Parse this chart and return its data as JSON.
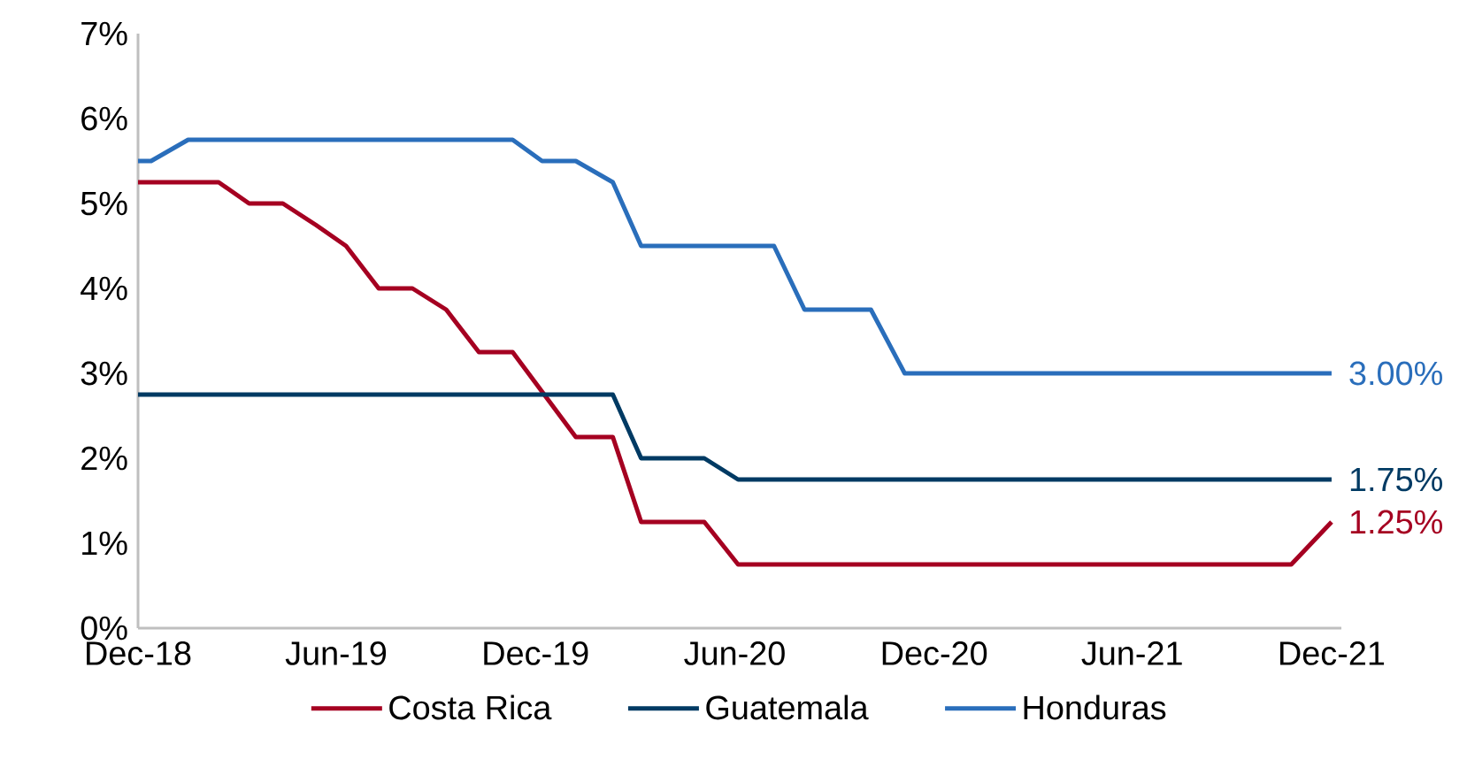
{
  "chart_data": {
    "type": "line",
    "xlim": [
      "2018-12-01",
      "2021-12-10"
    ],
    "ylim": [
      0,
      7
    ],
    "xticks": [
      {
        "value": "2018-12",
        "label": "Dec-18"
      },
      {
        "value": "2019-06",
        "label": "Jun-19"
      },
      {
        "value": "2019-12",
        "label": "Dec-19"
      },
      {
        "value": "2020-06",
        "label": "Jun-20"
      },
      {
        "value": "2020-12",
        "label": "Dec-20"
      },
      {
        "value": "2021-06",
        "label": "Jun-21"
      },
      {
        "value": "2021-12",
        "label": "Dec-21"
      }
    ],
    "yticks": [
      {
        "value": 0,
        "label": "0%"
      },
      {
        "value": 1,
        "label": "1%"
      },
      {
        "value": 2,
        "label": "2%"
      },
      {
        "value": 3,
        "label": "3%"
      },
      {
        "value": 4,
        "label": "4%"
      },
      {
        "value": 5,
        "label": "5%"
      },
      {
        "value": 6,
        "label": "6%"
      },
      {
        "value": 7,
        "label": "7%"
      }
    ],
    "series": [
      {
        "name": "Costa Rica",
        "color": "#a50021",
        "x": [
          "2018-12-01",
          "2019-02-13",
          "2019-03-13",
          "2019-04-13",
          "2019-05-13",
          "2019-06-10",
          "2019-07-10",
          "2019-08-10",
          "2019-09-10",
          "2019-10-10",
          "2019-11-10",
          "2020-01-07",
          "2020-02-10",
          "2020-03-07",
          "2020-05-04",
          "2020-06-04",
          "2021-10-25",
          "2021-12-01"
        ],
        "values": [
          5.25,
          5.25,
          5.0,
          5.0,
          4.75,
          4.5,
          4.0,
          4.0,
          3.75,
          3.25,
          3.25,
          2.25,
          2.25,
          1.25,
          1.25,
          0.75,
          0.75,
          1.25
        ]
      },
      {
        "name": "Guatemala",
        "color": "#003a63",
        "x": [
          "2018-12-01",
          "2020-02-10",
          "2020-03-07",
          "2020-05-04",
          "2020-06-04",
          "2021-12-01"
        ],
        "values": [
          2.75,
          2.75,
          2.0,
          2.0,
          1.75,
          1.75
        ]
      },
      {
        "name": "Honduras",
        "color": "#2a6ebb",
        "x": [
          "2018-12-01",
          "2018-12-13",
          "2019-01-16",
          "2019-11-10",
          "2019-12-07",
          "2020-01-07",
          "2020-02-10",
          "2020-03-07",
          "2020-07-07",
          "2020-08-04",
          "2020-10-04",
          "2020-11-04",
          "2021-12-01"
        ],
        "values": [
          5.5,
          5.5,
          5.75,
          5.75,
          5.5,
          5.5,
          5.25,
          4.5,
          4.5,
          3.75,
          3.75,
          3.0,
          3.0
        ]
      }
    ],
    "annotations": [
      {
        "text": "3.00%",
        "x": "2021-12-01",
        "y": 3.0
      },
      {
        "text": "1.75%",
        "x": "2021-12-01",
        "y": 1.75
      },
      {
        "text": "1.25%",
        "x": "2021-12-01",
        "y": 1.25
      }
    ],
    "legend": "bottom"
  }
}
